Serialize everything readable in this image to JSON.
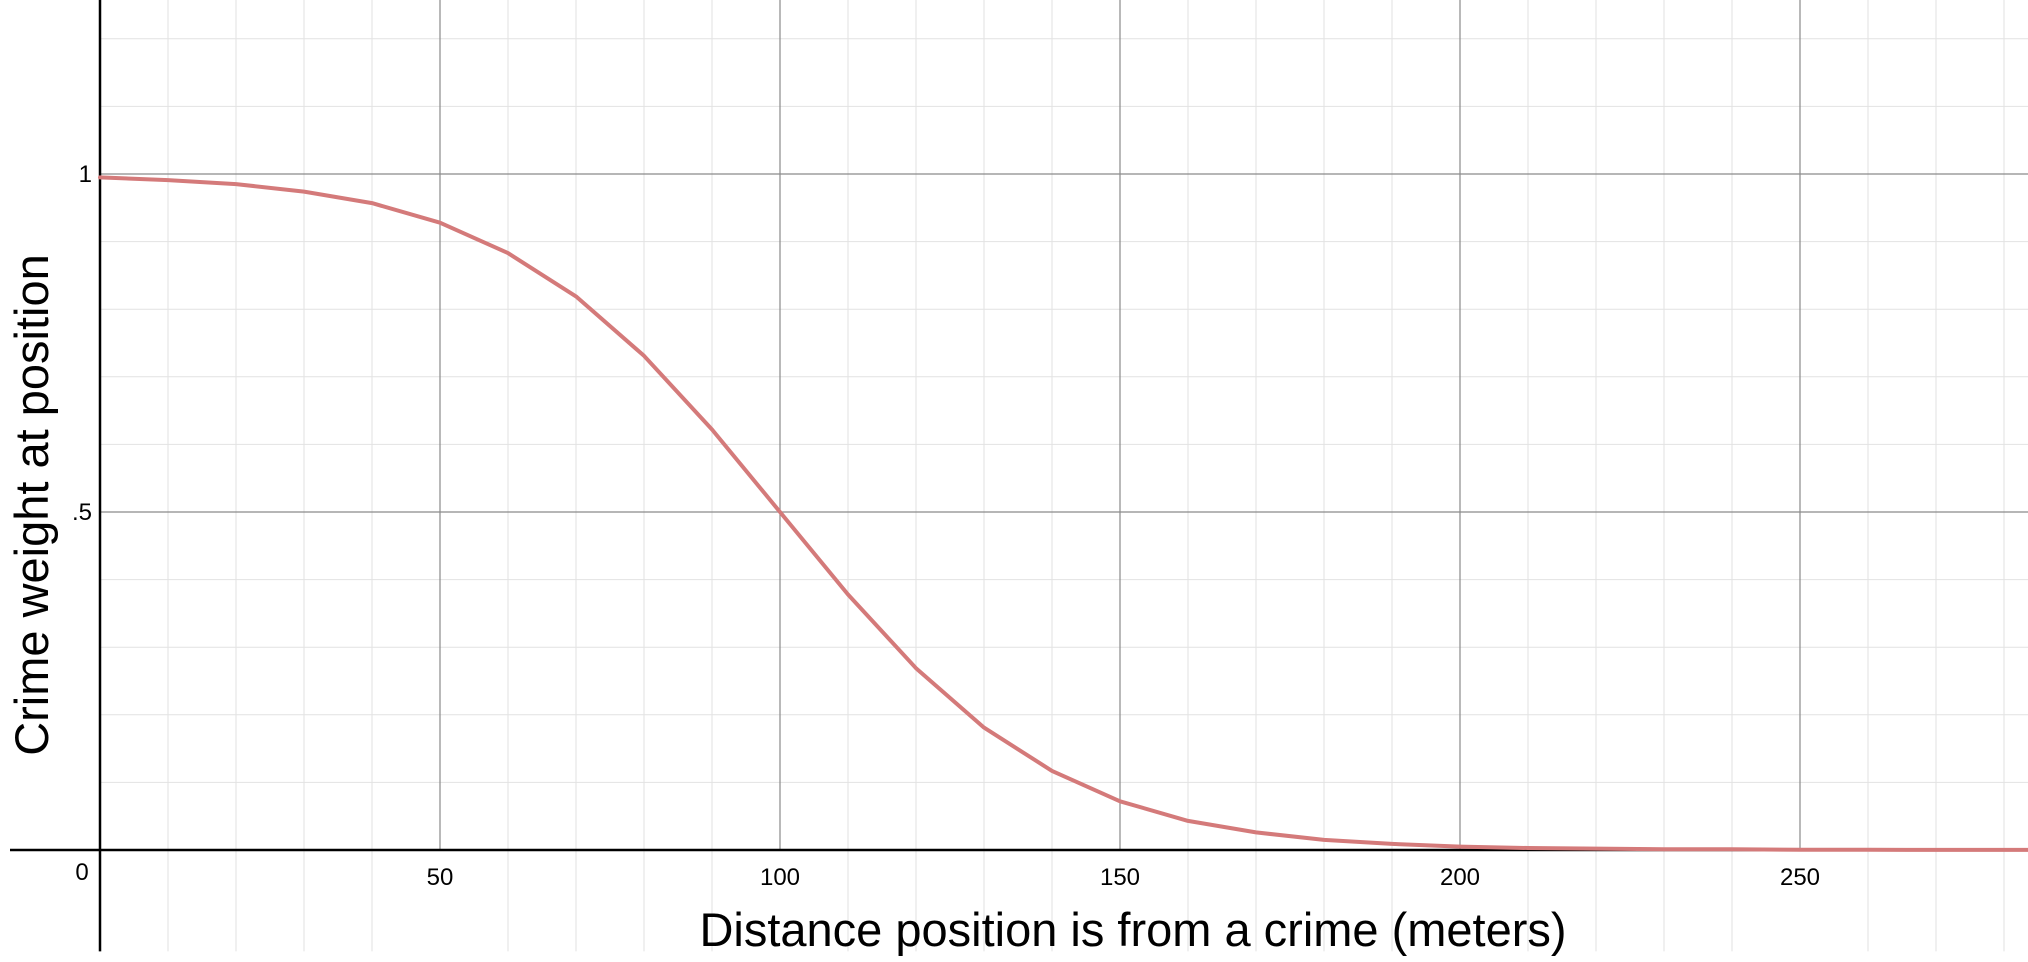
{
  "chart_data": {
    "type": "line",
    "title": "",
    "xlabel": "Distance position is from a crime (meters)",
    "ylabel": "Crime weight at position",
    "xlim": [
      0,
      284
    ],
    "ylim": [
      -0.15,
      1.26
    ],
    "x_ticks": [
      {
        "value": 0,
        "label": "0"
      },
      {
        "value": 50,
        "label": "50"
      },
      {
        "value": 100,
        "label": "100"
      },
      {
        "value": 150,
        "label": "150"
      },
      {
        "value": 200,
        "label": "200"
      },
      {
        "value": 250,
        "label": "250"
      }
    ],
    "y_ticks": [
      {
        "value": 0.5,
        "label": ".5"
      },
      {
        "value": 1,
        "label": "1"
      }
    ],
    "major_grid_x": 50,
    "minor_grid_x": 10,
    "major_grid_y": 0.5,
    "minor_grid_y": 0.1,
    "grid": true,
    "series": [
      {
        "color": "#d47a7a",
        "x": [
          0,
          10,
          20,
          30,
          40,
          50,
          60,
          70,
          80,
          90,
          100,
          110,
          120,
          130,
          140,
          150,
          160,
          170,
          180,
          190,
          200,
          210,
          220,
          230,
          240,
          250,
          260,
          270,
          284
        ],
        "y": [
          0.995,
          0.991,
          0.985,
          0.974,
          0.957,
          0.928,
          0.883,
          0.819,
          0.731,
          0.622,
          0.5,
          0.378,
          0.269,
          0.181,
          0.117,
          0.072,
          0.043,
          0.026,
          0.015,
          0.009,
          0.005,
          0.003,
          0.002,
          0.001,
          0.001,
          0.0005,
          0.0003,
          0.0002,
          0.0001
        ]
      }
    ]
  }
}
